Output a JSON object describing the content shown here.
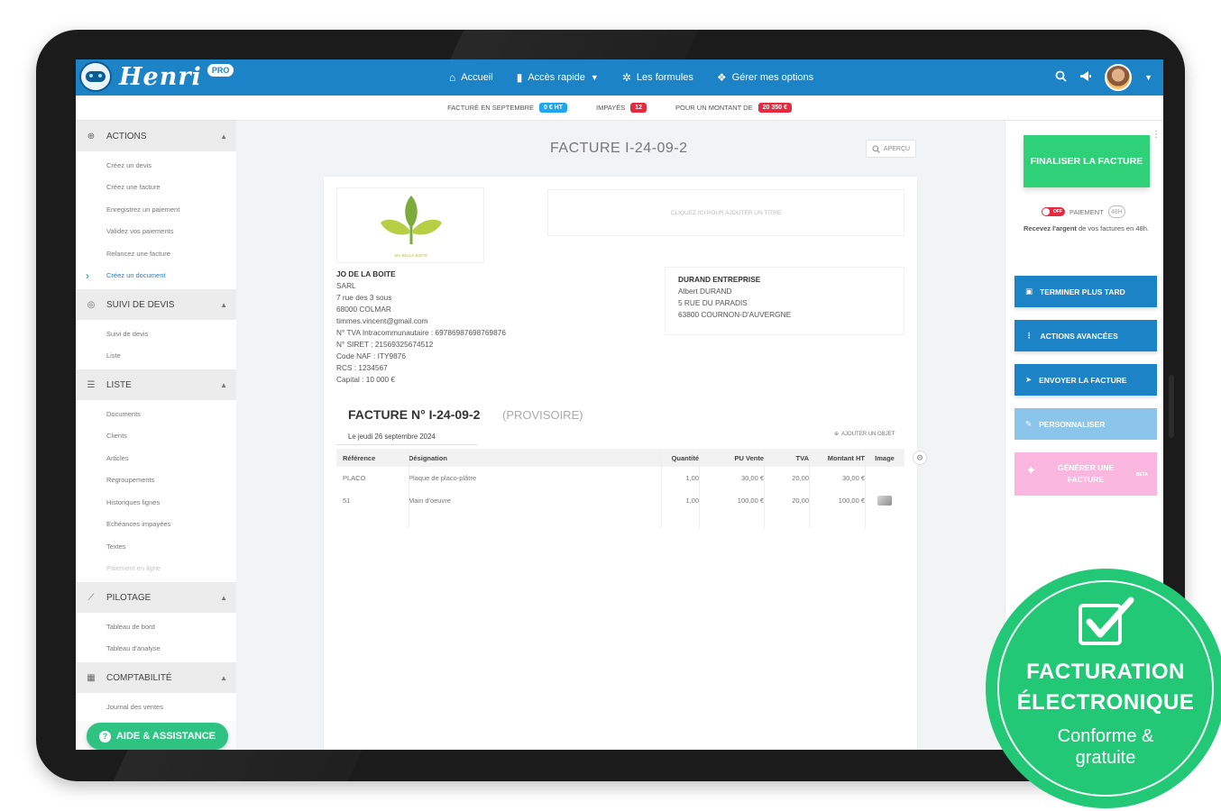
{
  "app": {
    "logo_text": "Henri",
    "logo_badge": "PRO"
  },
  "nav": [
    {
      "label": "Accueil",
      "icon": "home-icon",
      "glyph": "⌂"
    },
    {
      "label": "Accès rapide",
      "icon": "bookmark-icon",
      "glyph": "▮",
      "caret": "▼"
    },
    {
      "label": "Les formules",
      "icon": "gears-icon",
      "glyph": "✲"
    },
    {
      "label": "Gérer mes options",
      "icon": "puzzle-icon",
      "glyph": "❖"
    }
  ],
  "stats": {
    "billed_label": "Facturé en septembre",
    "billed_value": "0 € HT",
    "unpaid_label": "Impayés",
    "unpaid_value": "12",
    "amount_label": "Pour un montant de",
    "amount_value": "20 350 €"
  },
  "sidebar": {
    "sections": [
      {
        "title": "Actions",
        "icon": "plus-circle-icon",
        "glyph": "⊕",
        "items": [
          "Créez un devis",
          "Créez une facture",
          "Enregistrez un paiement",
          "Validez vos paiements",
          "Relancez une facture",
          "Créez un document"
        ]
      },
      {
        "title": "Suivi de devis",
        "icon": "target-icon",
        "glyph": "◎",
        "items": [
          "Suivi de devis",
          "Liste"
        ]
      },
      {
        "title": "Liste",
        "icon": "list-icon",
        "glyph": "☰",
        "items": [
          "Documents",
          "Clients",
          "Articles",
          "Regroupements",
          "Historiques lignes",
          "Echéances impayées",
          "Textes",
          "Paiement en ligne"
        ]
      },
      {
        "title": "Pilotage",
        "icon": "chart-line-icon",
        "glyph": "⟋",
        "items": [
          "Tableau de bord",
          "Tableau d'analyse"
        ]
      },
      {
        "title": "Comptabilité",
        "icon": "calculator-icon",
        "glyph": "▦",
        "items": [
          "Journal des ventes"
        ]
      }
    ],
    "help_label": "Aide & Assistance"
  },
  "document": {
    "page_title": "FACTURE I-24-09-2",
    "preview_label": "Aperçu",
    "brand_caption": "Ma belle boite",
    "title_placeholder": "Cliquez ici pour ajouter un titre",
    "sender": {
      "name": "JO DE LA BOITE",
      "lines": [
        "SARL",
        "7 rue des 3 sous",
        "68000 COLMAR",
        "timmes.vincent@gmail.com",
        "N° TVA Intracommunautaire : 69786987698769876",
        "N° SIRET : 21569325674512",
        "Code NAF : ITY9876",
        "RCS : 1234567",
        "Capital : 10 000 €"
      ]
    },
    "client": {
      "name": "DURAND ENTREPRISE",
      "lines": [
        "Albert DURAND",
        "5 RUE DU PARADIS",
        "63800 COURNON-D'AUVERGNE"
      ]
    },
    "invoice_number": "FACTURE N° I-24-09-2",
    "invoice_status": "(PROVISOIRE)",
    "invoice_date": "Le jeudi 26 septembre 2024",
    "add_object_label": "Ajouter un objet",
    "table": {
      "headers": [
        "Référence",
        "Désignation",
        "Quantité",
        "PU Vente",
        "TVA",
        "Montant HT",
        "Image"
      ],
      "rows": [
        {
          "ref": "PLACO",
          "designation": "Plaque de placo-plâtre",
          "qty": "1,00",
          "pu": "30,00 €",
          "tva": "20,00",
          "ht": "30,00 €",
          "image": false
        },
        {
          "ref": "51",
          "designation": "Main d'oeuvre",
          "qty": "1,00",
          "pu": "100,00 €",
          "tva": "20,00",
          "ht": "100,00 €",
          "image": true
        }
      ]
    }
  },
  "right_panel": {
    "finalize_label": "Finaliser la facture",
    "toggle_label": "OFF",
    "payment_label": "Paiement",
    "badge_48": "48H",
    "payment_desc_bold": "Recevez l'argent",
    "payment_desc_rest": " de vos factures en 48h.",
    "buttons": {
      "later": "Terminer plus tard",
      "advanced": "Actions avancées",
      "send": "Envoyer la facture",
      "customize": "Personnaliser",
      "generate": "Générer une facture",
      "beta": "BETA"
    }
  },
  "stamp": {
    "line1": "FACTURATION",
    "line2": "ÉLECTRONIQUE",
    "line3": "Conforme &",
    "line4": "gratuite"
  },
  "colors": {
    "brand_blue": "#1d83c7",
    "green": "#2fd178",
    "red": "#e8283f",
    "stamp_green": "#23c877"
  }
}
